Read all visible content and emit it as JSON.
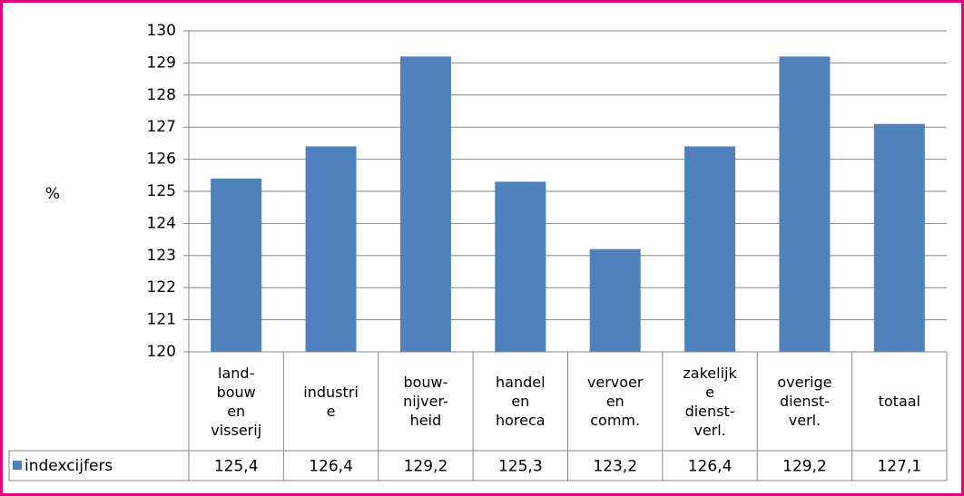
{
  "chart_data": {
    "type": "bar",
    "y_label": "%",
    "categories": [
      "land-\nbouw\nen\nvisserij",
      "industri\ne",
      "bouw-\nnijver-\nheid",
      "handel\nen\nhoreca",
      "vervoer\nen\ncomm.",
      "zakelijk\ne\ndienst-\nverl.",
      "overige\ndienst-\nverl.",
      "totaal"
    ],
    "series": [
      {
        "name": "indexcijfers",
        "color": "#4f81bd",
        "values": [
          125.4,
          126.4,
          129.2,
          125.3,
          123.2,
          126.4,
          129.2,
          127.1
        ],
        "value_labels": [
          "125,4",
          "126,4",
          "129,2",
          "125,3",
          "123,2",
          "126,4",
          "129,2",
          "127,1"
        ]
      }
    ],
    "ylim": [
      120,
      130
    ],
    "yticks": [
      120,
      121,
      122,
      123,
      124,
      125,
      126,
      127,
      128,
      129,
      130
    ],
    "grid": true,
    "border_color": "#e5007d"
  }
}
